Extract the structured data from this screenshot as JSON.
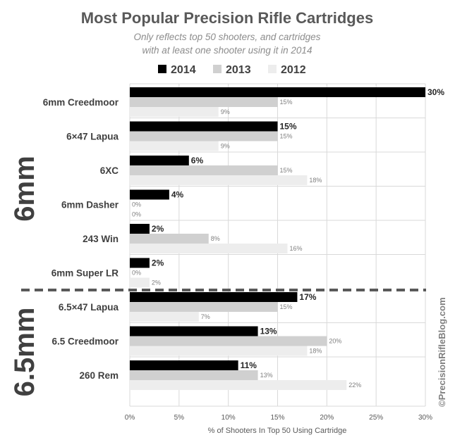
{
  "chart_data": {
    "type": "bar",
    "orientation": "horizontal",
    "title": "Most Popular Precision Rifle Cartridges",
    "subtitle_line1": "Only reflects top 50 shooters, and cartridges",
    "subtitle_line2": "with at least one shooter using it in 2014",
    "xlabel": "% of Shooters In Top 50 Using Cartridge",
    "xlim": [
      0,
      30
    ],
    "xticks": [
      "0%",
      "5%",
      "10%",
      "15%",
      "20%",
      "25%",
      "30%"
    ],
    "grid": true,
    "legend_position": "top",
    "categories": [
      "6mm Creedmoor",
      "6×47 Lapua",
      "6XC",
      "6mm Dasher",
      "243 Win",
      "6mm Super LR",
      "6.5×47 Lapua",
      "6.5 Creedmoor",
      "260 Rem"
    ],
    "groups": [
      {
        "label": "6mm",
        "categories": [
          "6mm Creedmoor",
          "6×47 Lapua",
          "6XC",
          "6mm Dasher",
          "243 Win",
          "6mm Super LR"
        ]
      },
      {
        "label": "6.5mm",
        "categories": [
          "6.5×47 Lapua",
          "6.5 Creedmoor",
          "260 Rem"
        ]
      }
    ],
    "series": [
      {
        "name": "2014",
        "color": "#000000",
        "values": [
          30,
          15,
          6,
          4,
          2,
          2,
          17,
          13,
          11
        ],
        "labels": [
          "30%",
          "15%",
          "6%",
          "4%",
          "2%",
          "2%",
          "17%",
          "13%",
          "11%"
        ]
      },
      {
        "name": "2013",
        "color": "#d0d0d0",
        "values": [
          15,
          15,
          15,
          0,
          8,
          0,
          15,
          20,
          13
        ],
        "labels": [
          "15%",
          "15%",
          "15%",
          "0%",
          "8%",
          "0%",
          "15%",
          "20%",
          "13%"
        ]
      },
      {
        "name": "2012",
        "color": "#ededed",
        "values": [
          9,
          9,
          18,
          0,
          16,
          2,
          7,
          18,
          22
        ],
        "labels": [
          "9%",
          "9%",
          "18%",
          "0%",
          "16%",
          "2%",
          "7%",
          "18%",
          "22%"
        ]
      }
    ]
  },
  "watermark": "©PrecisionRifleBlog.com"
}
